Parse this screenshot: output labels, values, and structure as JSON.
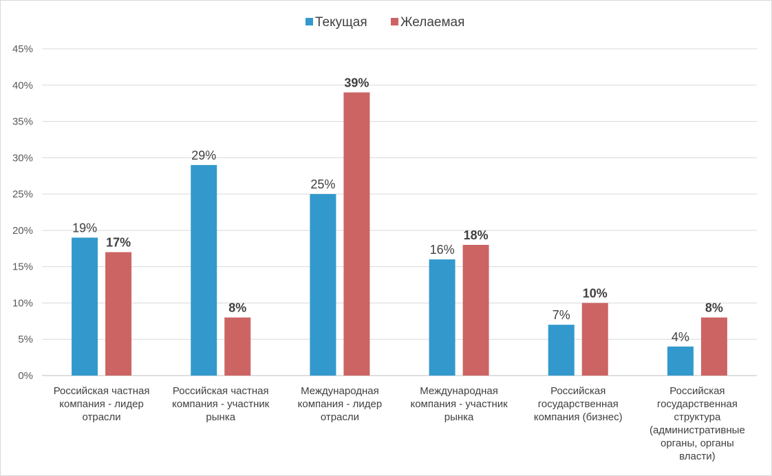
{
  "chart_data": {
    "type": "bar",
    "categories": [
      [
        "Российская частная",
        "компания - лидер",
        "отрасли"
      ],
      [
        "Российская частная",
        "компания - участник",
        "рынка"
      ],
      [
        "Международная",
        "компания - лидер",
        "отрасли"
      ],
      [
        "Международная",
        "компания - участник",
        "рынка"
      ],
      [
        "Российская",
        "государственная",
        "компания (бизнес)"
      ],
      [
        "Российская",
        "государственная",
        "структура",
        "(административные",
        "органы, органы",
        "власти)"
      ]
    ],
    "series": [
      {
        "name": "Текущая",
        "color": "#3399cc",
        "values": [
          19,
          29,
          25,
          16,
          7,
          4
        ],
        "labels": [
          "19%",
          "29%",
          "25%",
          "16%",
          "7%",
          "4%"
        ],
        "label_bold": false
      },
      {
        "name": "Желаемая",
        "color": "#cc6464",
        "values": [
          17,
          8,
          39,
          18,
          10,
          8
        ],
        "labels": [
          "17%",
          "8%",
          "39%",
          "18%",
          "10%",
          "8%"
        ],
        "label_bold": true
      }
    ],
    "y_ticks": [
      "0%",
      "5%",
      "10%",
      "15%",
      "20%",
      "25%",
      "30%",
      "35%",
      "40%",
      "45%"
    ],
    "ylim": [
      0,
      45
    ],
    "grid": true,
    "legend_position": "top-center",
    "title": "",
    "xlabel": "",
    "ylabel": ""
  }
}
